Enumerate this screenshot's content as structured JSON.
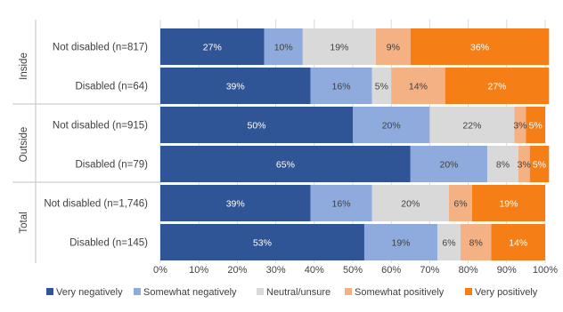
{
  "chart_data": {
    "type": "bar",
    "orientation": "horizontal",
    "stacked": true,
    "percent": true,
    "title": "",
    "xlabel": "",
    "ylabel": "",
    "xlim": [
      0,
      100
    ],
    "x_ticks": [
      "0%",
      "10%",
      "20%",
      "30%",
      "40%",
      "50%",
      "60%",
      "70%",
      "80%",
      "90%",
      "100%"
    ],
    "grid": "vertical",
    "legend_position": "bottom",
    "groups": [
      {
        "label": "Inside",
        "rows": [
          0,
          1
        ]
      },
      {
        "label": "Outside",
        "rows": [
          2,
          3
        ]
      },
      {
        "label": "Total",
        "rows": [
          4,
          5
        ]
      }
    ],
    "categories": [
      "Not disabled (n=817)",
      "Disabled (n=64)",
      "Not disabled (n=915)",
      "Disabled (n=79)",
      "Not disabled (n=1,746)",
      "Disabled (n=145)"
    ],
    "series": [
      {
        "name": "Very negatively",
        "color": "#2f5597",
        "label_color": "#ffffff",
        "values": [
          27,
          39,
          50,
          65,
          39,
          53
        ]
      },
      {
        "name": "Somewhat negatively",
        "color": "#8faadc",
        "label_color": "#404040",
        "values": [
          10,
          16,
          20,
          20,
          16,
          19
        ]
      },
      {
        "name": "Neutral/unsure",
        "color": "#d9d9d9",
        "label_color": "#404040",
        "values": [
          19,
          5,
          22,
          8,
          20,
          6
        ]
      },
      {
        "name": "Somewhat positively",
        "color": "#f4b183",
        "label_color": "#404040",
        "values": [
          9,
          14,
          3,
          3,
          6,
          8
        ]
      },
      {
        "name": "Very positively",
        "color": "#f57f16",
        "label_color": "#ffffff",
        "values": [
          36,
          27,
          5,
          5,
          19,
          14
        ]
      }
    ]
  }
}
